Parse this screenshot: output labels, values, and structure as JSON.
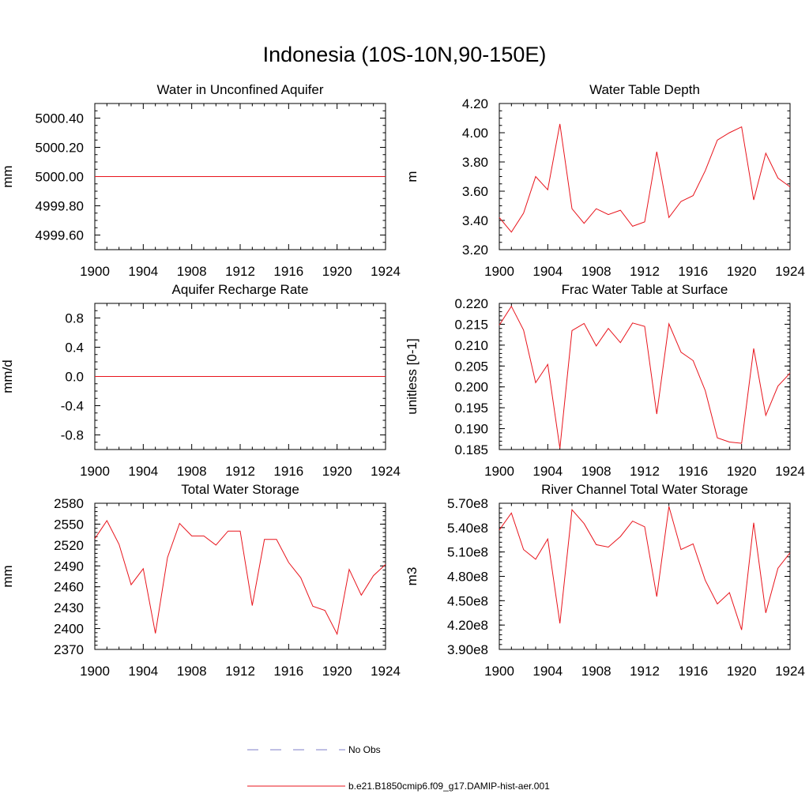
{
  "figure": {
    "title": "Indonesia (10S-10N,90-150E)",
    "series_color": "#e8141c",
    "obs_color": "#7f7fc8"
  },
  "legend": {
    "obs_label": "No Obs",
    "model_label": "b.e21.B1850cmip6.f09_g17.DAMIP-hist-aer.001"
  },
  "chart_data": [
    {
      "type": "line",
      "title": "Water in Unconfined Aquifer",
      "ylabel": "mm",
      "xlim": [
        1900,
        1924
      ],
      "ylim": [
        4999.5,
        5000.5
      ],
      "xticks": [
        1900,
        1904,
        1908,
        1912,
        1916,
        1920,
        1924
      ],
      "yticks": [
        4999.6,
        4999.8,
        5000.0,
        5000.2,
        5000.4
      ],
      "ytick_labels": [
        "4999.60",
        "4999.80",
        "5000.00",
        "5000.20",
        "5000.40"
      ],
      "yminor": 0.05,
      "series": [
        {
          "name": "b.e21.B1850cmip6.f09_g17.DAMIP-hist-aer.001",
          "x": [
            1900,
            1901,
            1902,
            1903,
            1904,
            1905,
            1906,
            1907,
            1908,
            1909,
            1910,
            1911,
            1912,
            1913,
            1914,
            1915,
            1916,
            1917,
            1918,
            1919,
            1920,
            1921,
            1922,
            1923,
            1924
          ],
          "y": [
            5000,
            5000,
            5000,
            5000,
            5000,
            5000,
            5000,
            5000,
            5000,
            5000,
            5000,
            5000,
            5000,
            5000,
            5000,
            5000,
            5000,
            5000,
            5000,
            5000,
            5000,
            5000,
            5000,
            5000,
            5000
          ]
        }
      ]
    },
    {
      "type": "line",
      "title": "Water Table Depth",
      "ylabel": "m",
      "xlim": [
        1900,
        1924
      ],
      "ylim": [
        3.2,
        4.2
      ],
      "xticks": [
        1900,
        1904,
        1908,
        1912,
        1916,
        1920,
        1924
      ],
      "yticks": [
        3.2,
        3.4,
        3.6,
        3.8,
        4.0,
        4.2
      ],
      "ytick_labels": [
        "3.20",
        "3.40",
        "3.60",
        "3.80",
        "4.00",
        "4.20"
      ],
      "yminor": 0.05,
      "series": [
        {
          "name": "b.e21.B1850cmip6.f09_g17.DAMIP-hist-aer.001",
          "x": [
            1900,
            1901,
            1902,
            1903,
            1904,
            1905,
            1906,
            1907,
            1908,
            1909,
            1910,
            1911,
            1912,
            1913,
            1914,
            1915,
            1916,
            1917,
            1918,
            1919,
            1920,
            1921,
            1922,
            1923,
            1924
          ],
          "y": [
            3.42,
            3.32,
            3.45,
            3.7,
            3.61,
            4.06,
            3.48,
            3.38,
            3.48,
            3.44,
            3.47,
            3.36,
            3.39,
            3.87,
            3.42,
            3.53,
            3.57,
            3.74,
            3.95,
            4.0,
            4.04,
            3.54,
            3.86,
            3.69,
            3.63
          ]
        }
      ]
    },
    {
      "type": "line",
      "title": "Aquifer Recharge Rate",
      "ylabel": "mm/d",
      "xlim": [
        1900,
        1924
      ],
      "ylim": [
        -1.0,
        1.0
      ],
      "xticks": [
        1900,
        1904,
        1908,
        1912,
        1916,
        1920,
        1924
      ],
      "yticks": [
        -0.8,
        -0.4,
        0.0,
        0.4,
        0.8
      ],
      "ytick_labels": [
        "-0.8",
        "-0.4",
        "0.0",
        "0.4",
        "0.8"
      ],
      "yminor": 0.1,
      "series": [
        {
          "name": "b.e21.B1850cmip6.f09_g17.DAMIP-hist-aer.001",
          "x": [
            1900,
            1901,
            1902,
            1903,
            1904,
            1905,
            1906,
            1907,
            1908,
            1909,
            1910,
            1911,
            1912,
            1913,
            1914,
            1915,
            1916,
            1917,
            1918,
            1919,
            1920,
            1921,
            1922,
            1923,
            1924
          ],
          "y": [
            0,
            0,
            0,
            0,
            0,
            0,
            0,
            0,
            0,
            0,
            0,
            0,
            0,
            0,
            0,
            0,
            0,
            0,
            0,
            0,
            0,
            0,
            0,
            0,
            0
          ]
        }
      ]
    },
    {
      "type": "line",
      "title": "Frac Water Table at Surface",
      "ylabel": "unitless [0-1]",
      "xlim": [
        1900,
        1924
      ],
      "ylim": [
        0.185,
        0.22
      ],
      "xticks": [
        1900,
        1904,
        1908,
        1912,
        1916,
        1920,
        1924
      ],
      "yticks": [
        0.185,
        0.19,
        0.195,
        0.2,
        0.205,
        0.21,
        0.215,
        0.22
      ],
      "ytick_labels": [
        "0.185",
        "0.190",
        "0.195",
        "0.200",
        "0.205",
        "0.210",
        "0.215",
        "0.220"
      ],
      "yminor": 0.001,
      "series": [
        {
          "name": "b.e21.B1850cmip6.f09_g17.DAMIP-hist-aer.001",
          "x": [
            1900,
            1901,
            1902,
            1903,
            1904,
            1905,
            1906,
            1907,
            1908,
            1909,
            1910,
            1911,
            1912,
            1913,
            1914,
            1915,
            1916,
            1917,
            1918,
            1919,
            1920,
            1921,
            1922,
            1923,
            1924
          ],
          "y": [
            0.2148,
            0.2193,
            0.2136,
            0.201,
            0.2054,
            0.1853,
            0.2135,
            0.2152,
            0.2098,
            0.214,
            0.2106,
            0.2153,
            0.2145,
            0.1935,
            0.2151,
            0.2083,
            0.2063,
            0.1991,
            0.1878,
            0.1868,
            0.1865,
            0.2092,
            0.1932,
            0.2002,
            0.2033
          ]
        }
      ]
    },
    {
      "type": "line",
      "title": "Total Water Storage",
      "ylabel": "mm",
      "xlim": [
        1900,
        1924
      ],
      "ylim": [
        2370,
        2580
      ],
      "xticks": [
        1900,
        1904,
        1908,
        1912,
        1916,
        1920,
        1924
      ],
      "yticks": [
        2370,
        2400,
        2430,
        2460,
        2490,
        2520,
        2550,
        2580
      ],
      "ytick_labels": [
        "2370",
        "2400",
        "2430",
        "2460",
        "2490",
        "2520",
        "2550",
        "2580"
      ],
      "yminor": 6,
      "series": [
        {
          "name": "b.e21.B1850cmip6.f09_g17.DAMIP-hist-aer.001",
          "x": [
            1900,
            1901,
            1902,
            1903,
            1904,
            1905,
            1906,
            1907,
            1908,
            1909,
            1910,
            1911,
            1912,
            1913,
            1914,
            1915,
            1916,
            1917,
            1918,
            1919,
            1920,
            1921,
            1922,
            1923,
            1924
          ],
          "y": [
            2529,
            2555,
            2521,
            2463,
            2486,
            2393,
            2502,
            2551,
            2533,
            2533,
            2520,
            2540,
            2540,
            2433,
            2528,
            2528,
            2495,
            2473,
            2432,
            2426,
            2392,
            2485,
            2448,
            2476,
            2492
          ]
        }
      ]
    },
    {
      "type": "line",
      "title": "River Channel Total Water Storage",
      "ylabel": "m3",
      "xlim": [
        1900,
        1924
      ],
      "ylim": [
        390000000,
        570000000
      ],
      "xticks": [
        1900,
        1904,
        1908,
        1912,
        1916,
        1920,
        1924
      ],
      "yticks": [
        390000000,
        420000000,
        450000000,
        480000000,
        510000000,
        540000000,
        570000000
      ],
      "ytick_labels": [
        "3.90e8",
        "4.20e8",
        "4.50e8",
        "4.80e8",
        "5.10e8",
        "5.40e8",
        "5.70e8"
      ],
      "yminor": 6000000,
      "series": [
        {
          "name": "b.e21.B1850cmip6.f09_g17.DAMIP-hist-aer.001",
          "x": [
            1900,
            1901,
            1902,
            1903,
            1904,
            1905,
            1906,
            1907,
            1908,
            1909,
            1910,
            1911,
            1912,
            1913,
            1914,
            1915,
            1916,
            1917,
            1918,
            1919,
            1920,
            1921,
            1922,
            1923,
            1924
          ],
          "y": [
            537000000,
            558000000,
            513000000,
            501000000,
            526000000,
            422000000,
            562000000,
            545000000,
            519000000,
            516000000,
            529000000,
            548000000,
            541000000,
            455000000,
            566000000,
            513000000,
            520000000,
            475000000,
            446000000,
            460000000,
            414000000,
            546000000,
            435000000,
            490000000,
            509000000
          ]
        }
      ]
    }
  ]
}
